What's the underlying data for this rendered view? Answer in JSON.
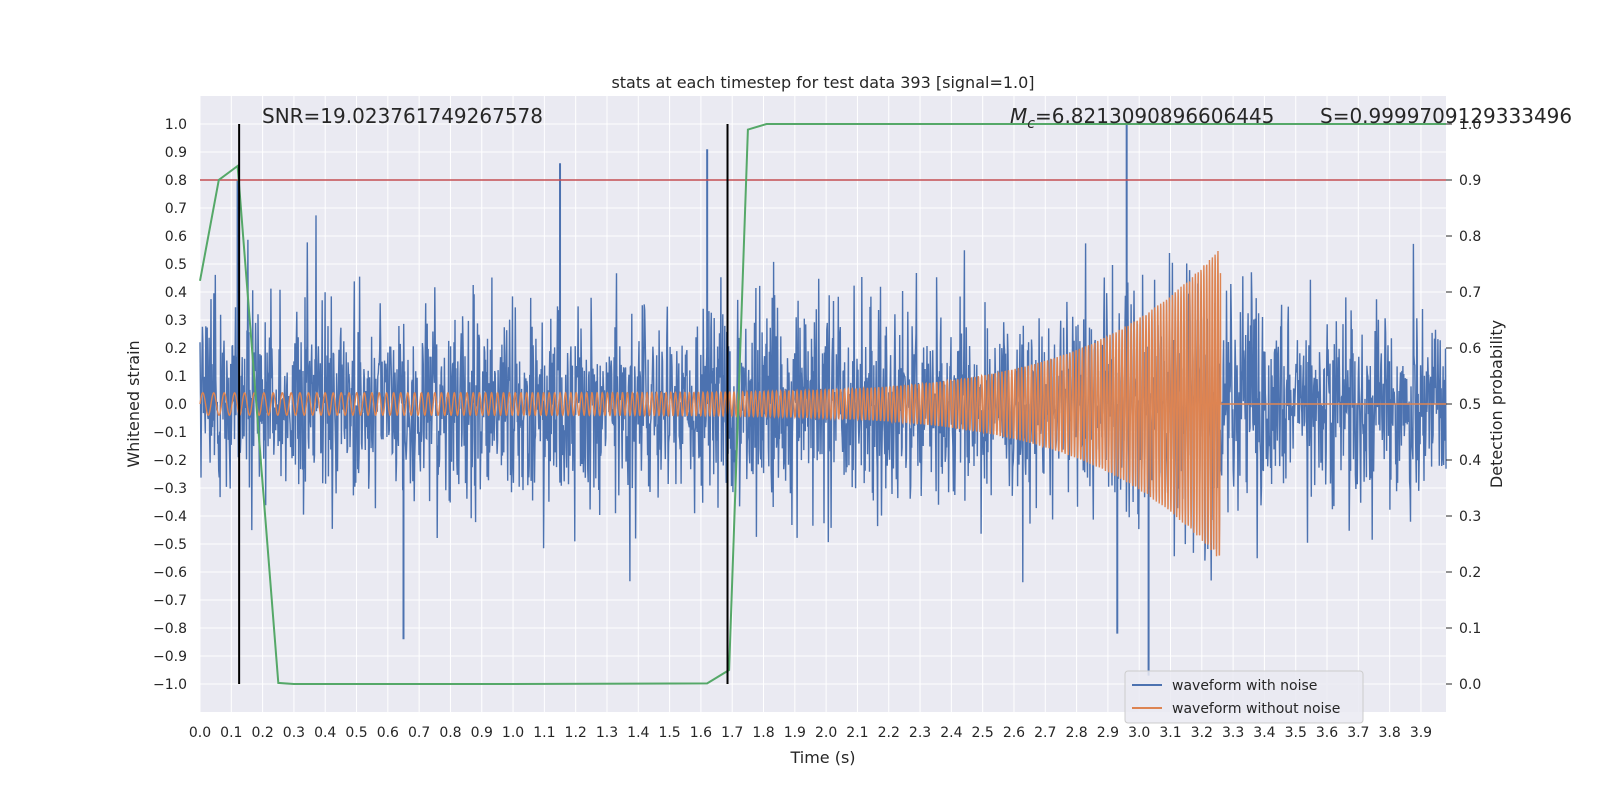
{
  "chart_data": {
    "type": "line",
    "title": "stats at each timestep for test data 393 [signal=1.0]",
    "xlabel": "Time (s)",
    "ylabel": "Whitened strain",
    "ylabel_right": "Detection probability",
    "xlim": [
      0.0,
      3.98
    ],
    "ylim": [
      -1.1,
      1.1
    ],
    "ylim_right": [
      -0.05,
      1.05
    ],
    "x_ticks": [
      "0.0",
      "0.1",
      "0.2",
      "0.3",
      "0.4",
      "0.5",
      "0.6",
      "0.7",
      "0.8",
      "0.9",
      "1.0",
      "1.1",
      "1.2",
      "1.3",
      "1.4",
      "1.5",
      "1.6",
      "1.7",
      "1.8",
      "1.9",
      "2.0",
      "2.1",
      "2.2",
      "2.3",
      "2.4",
      "2.5",
      "2.6",
      "2.7",
      "2.8",
      "2.9",
      "3.0",
      "3.1",
      "3.2",
      "3.3",
      "3.4",
      "3.5",
      "3.6",
      "3.7",
      "3.8",
      "3.9"
    ],
    "y_ticks": [
      "1.0",
      "0.9",
      "0.8",
      "0.7",
      "0.6",
      "0.5",
      "0.4",
      "0.3",
      "0.2",
      "0.1",
      "0.0",
      "−0.1",
      "−0.2",
      "−0.3",
      "−0.4",
      "−0.5",
      "−0.6",
      "−0.7",
      "−0.8",
      "−0.9",
      "−1.0"
    ],
    "y_ticks_right": [
      "1.0",
      "0.9",
      "0.8",
      "0.7",
      "0.6",
      "0.5",
      "0.4",
      "0.3",
      "0.2",
      "0.1",
      "0.0"
    ],
    "annotations": {
      "snr": "SNR=19.023761749267578",
      "mc_symbol": "M",
      "mc_sub": "c",
      "mc_value": "=6.8213090896606445",
      "s": "S=0.9999709129333496"
    },
    "series": [
      {
        "name": "waveform with noise",
        "color": "#4c72b0",
        "kind": "noise",
        "sigma": 0.18,
        "spikes": [
          [
            0.12,
            0.8
          ],
          [
            0.65,
            -0.84
          ],
          [
            1.15,
            0.86
          ],
          [
            1.62,
            0.91
          ],
          [
            2.96,
            1.0
          ],
          [
            3.03,
            -0.97
          ],
          [
            2.93,
            -0.82
          ]
        ]
      },
      {
        "name": "waveform without noise",
        "color": "#dd8452",
        "kind": "chirp",
        "t_merge": 3.26,
        "amp_start": 0.04,
        "amp_peak": 0.56,
        "f_start": 28,
        "f_end": 70
      },
      {
        "name": "detection probability",
        "color": "#55a868",
        "axis": "right",
        "x": [
          0.0,
          0.06,
          0.12,
          0.25,
          0.3,
          1.0,
          1.62,
          1.69,
          1.75,
          1.81,
          3.98
        ],
        "y": [
          0.72,
          0.9,
          0.925,
          0.002,
          0.0,
          0.0,
          0.001,
          0.025,
          0.99,
          1.0,
          1.0
        ]
      }
    ],
    "hlines": [
      {
        "y": 0.8,
        "color": "#c44e52"
      }
    ],
    "vlines": [
      {
        "x": 0.125,
        "color": "#000000"
      },
      {
        "x": 1.685,
        "color": "#000000"
      }
    ],
    "legend": [
      "waveform with noise",
      "waveform without noise"
    ],
    "legend_position": "lower-right"
  }
}
